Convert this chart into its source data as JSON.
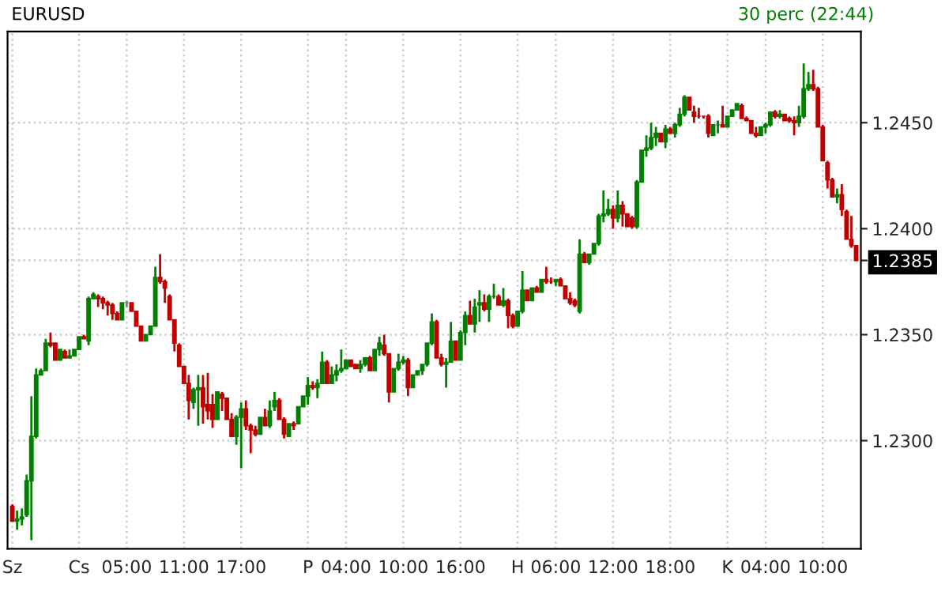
{
  "chart_data": {
    "type": "candlestick",
    "title": "EURUSD",
    "subtitle": "30 perc (22:44)",
    "categories": [
      "Sz",
      null,
      null,
      null,
      null,
      null,
      null,
      null,
      null,
      null,
      null,
      null,
      null,
      null,
      "Cs",
      null,
      null,
      null,
      null,
      null,
      null,
      null,
      null,
      null,
      "05:00",
      null,
      null,
      null,
      null,
      null,
      null,
      null,
      null,
      null,
      null,
      null,
      "11:00",
      null,
      null,
      null,
      null,
      null,
      null,
      null,
      null,
      null,
      null,
      null,
      "17:00",
      null,
      null,
      null,
      null,
      null,
      null,
      null,
      null,
      null,
      null,
      null,
      null,
      null,
      "P",
      null,
      null,
      null,
      null,
      null,
      null,
      null,
      "04:00",
      null,
      null,
      null,
      null,
      null,
      null,
      null,
      null,
      null,
      null,
      null,
      "10:00",
      null,
      null,
      null,
      null,
      null,
      null,
      null,
      null,
      null,
      null,
      null,
      "16:00",
      null,
      null,
      null,
      null,
      null,
      null,
      null,
      null,
      null,
      null,
      null,
      "H",
      null,
      null,
      null,
      null,
      null,
      null,
      null,
      "06:00",
      null,
      null,
      null,
      null,
      null,
      null,
      null,
      null,
      null,
      null,
      null,
      "12:00",
      null,
      null,
      null,
      null,
      null,
      null,
      null,
      null,
      null,
      null,
      null,
      "18:00",
      null,
      null,
      null,
      null,
      null,
      null,
      null,
      null,
      null,
      null,
      null,
      "K",
      null,
      null,
      null,
      null,
      null,
      null,
      null,
      "04:00",
      null,
      null,
      null,
      null,
      null,
      null,
      null,
      null,
      null,
      null,
      null,
      "10:00",
      null,
      null,
      null,
      null,
      null,
      null,
      null
    ],
    "ohlc": [
      [
        1.2269,
        1.227,
        1.2262,
        1.2262
      ],
      [
        1.2262,
        1.2267,
        1.2258,
        1.2263
      ],
      [
        1.2263,
        1.2268,
        1.226,
        1.2264
      ],
      [
        1.2265,
        1.2284,
        1.2264,
        1.2281
      ],
      [
        1.2281,
        1.2321,
        1.2253,
        1.2302
      ],
      [
        1.2302,
        1.2334,
        1.2301,
        1.2331
      ],
      [
        1.2331,
        1.2334,
        1.2331,
        1.2333
      ],
      [
        1.2333,
        1.2348,
        1.2333,
        1.2346
      ],
      [
        1.2346,
        1.2351,
        1.2344,
        1.2345
      ],
      [
        1.2346,
        1.2346,
        1.2338,
        1.2338
      ],
      [
        1.2338,
        1.2343,
        1.2338,
        1.2343
      ],
      [
        1.2342,
        1.2343,
        1.2339,
        1.2339
      ],
      [
        1.2339,
        1.2343,
        1.2339,
        1.234
      ],
      [
        1.234,
        1.2343,
        1.234,
        1.2343
      ],
      [
        1.2343,
        1.2349,
        1.2343,
        1.2349
      ],
      [
        1.2349,
        1.235,
        1.2348,
        1.2348
      ],
      [
        1.2347,
        1.2368,
        1.2345,
        1.2367
      ],
      [
        1.2367,
        1.237,
        1.2367,
        1.2369
      ],
      [
        1.2368,
        1.2369,
        1.2363,
        1.2367
      ],
      [
        1.2367,
        1.2368,
        1.2362,
        1.2365
      ],
      [
        1.2365,
        1.2366,
        1.2359,
        1.2364
      ],
      [
        1.2364,
        1.2365,
        1.2357,
        1.236
      ],
      [
        1.236,
        1.2361,
        1.2357,
        1.2357
      ],
      [
        1.2357,
        1.2365,
        1.2357,
        1.2365
      ],
      [
        1.2365,
        1.2366,
        1.2363,
        1.2365
      ],
      [
        1.2365,
        1.2365,
        1.2361,
        1.2361
      ],
      [
        1.2361,
        1.2361,
        1.2354,
        1.2354
      ],
      [
        1.2354,
        1.2354,
        1.2347,
        1.2347
      ],
      [
        1.2347,
        1.235,
        1.2347,
        1.235
      ],
      [
        1.235,
        1.2354,
        1.235,
        1.2354
      ],
      [
        1.2354,
        1.2382,
        1.2354,
        1.2377
      ],
      [
        1.2377,
        1.2388,
        1.2374,
        1.2375
      ],
      [
        1.2375,
        1.2376,
        1.2365,
        1.2372
      ],
      [
        1.2368,
        1.2369,
        1.2357,
        1.2357
      ],
      [
        1.2357,
        1.2357,
        1.2342,
        1.2346
      ],
      [
        1.2345,
        1.2346,
        1.2335,
        1.2335
      ],
      [
        1.2335,
        1.2335,
        1.2327,
        1.2327
      ],
      [
        1.2327,
        1.2331,
        1.231,
        1.2319
      ],
      [
        1.2318,
        1.2325,
        1.2315,
        1.2324
      ],
      [
        1.2324,
        1.2331,
        1.2307,
        1.2325
      ],
      [
        1.2325,
        1.2331,
        1.2308,
        1.2316
      ],
      [
        1.2317,
        1.2332,
        1.231,
        1.2314
      ],
      [
        1.2317,
        1.2322,
        1.2306,
        1.231
      ],
      [
        1.231,
        1.2323,
        1.231,
        1.2323
      ],
      [
        1.2322,
        1.2323,
        1.2314,
        1.232
      ],
      [
        1.232,
        1.232,
        1.231,
        1.231
      ],
      [
        1.231,
        1.2313,
        1.2302,
        1.2302
      ],
      [
        1.2302,
        1.2312,
        1.2298,
        1.2311
      ],
      [
        1.2311,
        1.2318,
        1.2287,
        1.2315
      ],
      [
        1.2315,
        1.2319,
        1.2305,
        1.2307
      ],
      [
        1.2307,
        1.2308,
        1.2294,
        1.2305
      ],
      [
        1.2305,
        1.2307,
        1.2302,
        1.2303
      ],
      [
        1.2303,
        1.2311,
        1.2303,
        1.2311
      ],
      [
        1.2311,
        1.2315,
        1.2307,
        1.2307
      ],
      [
        1.2307,
        1.2319,
        1.2306,
        1.2314
      ],
      [
        1.2316,
        1.2323,
        1.2314,
        1.2319
      ],
      [
        1.2319,
        1.232,
        1.231,
        1.231
      ],
      [
        1.231,
        1.2311,
        1.2301,
        1.2303
      ],
      [
        1.2302,
        1.2308,
        1.2302,
        1.2308
      ],
      [
        1.2308,
        1.2309,
        1.2305,
        1.2307
      ],
      [
        1.2308,
        1.2316,
        1.2308,
        1.2316
      ],
      [
        1.2316,
        1.2321,
        1.2316,
        1.2321
      ],
      [
        1.2321,
        1.233,
        1.2317,
        1.2326
      ],
      [
        1.2326,
        1.2328,
        1.2324,
        1.2325
      ],
      [
        1.2325,
        1.2329,
        1.232,
        1.2327
      ],
      [
        1.2327,
        1.2342,
        1.2327,
        1.2337
      ],
      [
        1.2337,
        1.2338,
        1.2327,
        1.2327
      ],
      [
        1.2327,
        1.2335,
        1.2327,
        1.2331
      ],
      [
        1.2331,
        1.2336,
        1.2328,
        1.2333
      ],
      [
        1.2333,
        1.2343,
        1.2332,
        1.2334
      ],
      [
        1.2334,
        1.2338,
        1.2334,
        1.2338
      ],
      [
        1.2338,
        1.2338,
        1.2335,
        1.2335
      ],
      [
        1.2336,
        1.2336,
        1.2334,
        1.2334
      ],
      [
        1.2334,
        1.2338,
        1.2332,
        1.2336
      ],
      [
        1.2336,
        1.2339,
        1.2335,
        1.2339
      ],
      [
        1.2339,
        1.234,
        1.2333,
        1.2333
      ],
      [
        1.2333,
        1.2343,
        1.2333,
        1.2343
      ],
      [
        1.2343,
        1.2349,
        1.234,
        1.2346
      ],
      [
        1.2345,
        1.235,
        1.234,
        1.2341
      ],
      [
        1.2341,
        1.2341,
        1.2318,
        1.2323
      ],
      [
        1.2323,
        1.2334,
        1.2323,
        1.2334
      ],
      [
        1.2334,
        1.2341,
        1.2333,
        1.2337
      ],
      [
        1.2337,
        1.234,
        1.2336,
        1.2338
      ],
      [
        1.2338,
        1.2339,
        1.2321,
        1.2325
      ],
      [
        1.2325,
        1.2331,
        1.2325,
        1.2331
      ],
      [
        1.2331,
        1.2333,
        1.2331,
        1.2333
      ],
      [
        1.2333,
        1.2336,
        1.2331,
        1.2336
      ],
      [
        1.2336,
        1.2346,
        1.2335,
        1.2346
      ],
      [
        1.2346,
        1.236,
        1.2345,
        1.2356
      ],
      [
        1.2356,
        1.2357,
        1.2339,
        1.2339
      ],
      [
        1.2339,
        1.2341,
        1.2335,
        1.2336
      ],
      [
        1.2336,
        1.2339,
        1.2325,
        1.2337
      ],
      [
        1.2337,
        1.2356,
        1.2337,
        1.2347
      ],
      [
        1.2347,
        1.2347,
        1.2338,
        1.2338
      ],
      [
        1.2338,
        1.2352,
        1.2338,
        1.2351
      ],
      [
        1.2351,
        1.2361,
        1.2345,
        1.2359
      ],
      [
        1.2359,
        1.2366,
        1.2355,
        1.2355
      ],
      [
        1.2355,
        1.2367,
        1.2351,
        1.2363
      ],
      [
        1.2364,
        1.2371,
        1.2356,
        1.2365
      ],
      [
        1.2365,
        1.2369,
        1.2361,
        1.2362
      ],
      [
        1.2362,
        1.2369,
        1.2356,
        1.2368
      ],
      [
        1.2368,
        1.2374,
        1.2367,
        1.2368
      ],
      [
        1.2368,
        1.2369,
        1.2364,
        1.2364
      ],
      [
        1.2364,
        1.2372,
        1.2363,
        1.2366
      ],
      [
        1.2366,
        1.2367,
        1.2353,
        1.2359
      ],
      [
        1.2359,
        1.236,
        1.2353,
        1.2354
      ],
      [
        1.2354,
        1.2361,
        1.2354,
        1.2361
      ],
      [
        1.2361,
        1.238,
        1.236,
        1.2371
      ],
      [
        1.2371,
        1.2371,
        1.2366,
        1.2366
      ],
      [
        1.2366,
        1.2372,
        1.2366,
        1.2372
      ],
      [
        1.2372,
        1.2373,
        1.237,
        1.237
      ],
      [
        1.237,
        1.2376,
        1.237,
        1.2376
      ],
      [
        1.2376,
        1.2382,
        1.2374,
        1.2375
      ],
      [
        1.2375,
        1.2377,
        1.2374,
        1.2375
      ],
      [
        1.2375,
        1.2376,
        1.2373,
        1.2376
      ],
      [
        1.2376,
        1.2377,
        1.2373,
        1.2373
      ],
      [
        1.2373,
        1.2373,
        1.2367,
        1.2367
      ],
      [
        1.2367,
        1.237,
        1.2364,
        1.2365
      ],
      [
        1.2366,
        1.2367,
        1.2363,
        1.2364
      ],
      [
        1.2361,
        1.2395,
        1.236,
        1.2388
      ],
      [
        1.2388,
        1.2389,
        1.2384,
        1.2384
      ],
      [
        1.2384,
        1.2388,
        1.2383,
        1.2388
      ],
      [
        1.2388,
        1.2393,
        1.2388,
        1.2393
      ],
      [
        1.2393,
        1.2407,
        1.2392,
        1.2406
      ],
      [
        1.2406,
        1.2418,
        1.2403,
        1.2407
      ],
      [
        1.2407,
        1.2414,
        1.2406,
        1.2409
      ],
      [
        1.2409,
        1.2411,
        1.24,
        1.2405
      ],
      [
        1.2405,
        1.2418,
        1.2403,
        1.2411
      ],
      [
        1.2411,
        1.2413,
        1.2401,
        1.2407
      ],
      [
        1.2407,
        1.2407,
        1.2401,
        1.2401
      ],
      [
        1.2405,
        1.2406,
        1.24,
        1.2401
      ],
      [
        1.2401,
        1.2423,
        1.24,
        1.2422
      ],
      [
        1.2422,
        1.2437,
        1.2422,
        1.2437
      ],
      [
        1.2437,
        1.2444,
        1.2434,
        1.2438
      ],
      [
        1.2438,
        1.245,
        1.2437,
        1.2443
      ],
      [
        1.2443,
        1.2448,
        1.2439,
        1.2445
      ],
      [
        1.2445,
        1.2445,
        1.2441,
        1.2441
      ],
      [
        1.2441,
        1.2449,
        1.2438,
        1.2447
      ],
      [
        1.2447,
        1.2448,
        1.2445,
        1.2445
      ],
      [
        1.2445,
        1.245,
        1.2443,
        1.2449
      ],
      [
        1.2449,
        1.2457,
        1.2448,
        1.2454
      ],
      [
        1.2454,
        1.2463,
        1.2453,
        1.2462
      ],
      [
        1.2462,
        1.2462,
        1.2456,
        1.2456
      ],
      [
        1.2455,
        1.2458,
        1.245,
        1.2453
      ],
      [
        1.2453,
        1.2457,
        1.2452,
        1.2453
      ],
      [
        1.2453,
        1.2453,
        1.2452,
        1.2453
      ],
      [
        1.2453,
        1.2454,
        1.2443,
        1.2445
      ],
      [
        1.2444,
        1.2449,
        1.2444,
        1.2449
      ],
      [
        1.2449,
        1.2451,
        1.2445,
        1.2449
      ],
      [
        1.2449,
        1.2458,
        1.2448,
        1.2448
      ],
      [
        1.2448,
        1.2453,
        1.2448,
        1.2453
      ],
      [
        1.2453,
        1.2456,
        1.2453,
        1.2456
      ],
      [
        1.2456,
        1.2459,
        1.2456,
        1.2459
      ],
      [
        1.2458,
        1.2459,
        1.2452,
        1.2452
      ],
      [
        1.2452,
        1.2453,
        1.2451,
        1.2451
      ],
      [
        1.2451,
        1.2451,
        1.2445,
        1.2445
      ],
      [
        1.2445,
        1.2448,
        1.2443,
        1.2444
      ],
      [
        1.2444,
        1.2448,
        1.2444,
        1.2448
      ],
      [
        1.2448,
        1.245,
        1.2445,
        1.2449
      ],
      [
        1.2449,
        1.2455,
        1.2448,
        1.2455
      ],
      [
        1.2455,
        1.2456,
        1.2452,
        1.2453
      ],
      [
        1.2453,
        1.2456,
        1.2452,
        1.2454
      ],
      [
        1.2454,
        1.2454,
        1.2451,
        1.2451
      ],
      [
        1.2452,
        1.2453,
        1.245,
        1.2451
      ],
      [
        1.2451,
        1.2453,
        1.2444,
        1.245
      ],
      [
        1.245,
        1.2458,
        1.2448,
        1.2453
      ],
      [
        1.2453,
        1.2478,
        1.2452,
        1.2466
      ],
      [
        1.2466,
        1.2474,
        1.2465,
        1.2468
      ],
      [
        1.2468,
        1.2475,
        1.2465,
        1.2466
      ],
      [
        1.2466,
        1.2467,
        1.2448,
        1.2448
      ],
      [
        1.2448,
        1.2449,
        1.2432,
        1.2432
      ],
      [
        1.2431,
        1.2432,
        1.2419,
        1.2423
      ],
      [
        1.2423,
        1.2424,
        1.2415,
        1.2415
      ],
      [
        1.2415,
        1.2419,
        1.2412,
        1.2416
      ],
      [
        1.2416,
        1.2421,
        1.2406,
        1.2409
      ],
      [
        1.2408,
        1.2409,
        1.2395,
        1.2395
      ],
      [
        1.2395,
        1.2406,
        1.2391,
        1.2392
      ],
      [
        1.2392,
        1.2392,
        1.2385,
        1.2385
      ]
    ],
    "colors": [
      "#c00000",
      "#008000",
      "#008000",
      "#008000",
      "#008000",
      "#008000",
      "#008000",
      "#008000",
      "#c00000",
      "#c00000",
      "#008000",
      "#c00000",
      "#008000",
      "#008000",
      "#008000",
      "#c00000",
      "#008000",
      "#008000",
      "#c00000",
      "#c00000",
      "#c00000",
      "#c00000",
      "#c00000",
      "#008000",
      "#808080",
      "#c00000",
      "#c00000",
      "#c00000",
      "#008000",
      "#008000",
      "#008000",
      "#c00000",
      "#c00000",
      "#c00000",
      "#c00000",
      "#c00000",
      "#c00000",
      "#c00000",
      "#008000",
      "#008000",
      "#c00000",
      "#c00000",
      "#c00000",
      "#008000",
      "#c00000",
      "#c00000",
      "#c00000",
      "#008000",
      "#008000",
      "#c00000",
      "#c00000",
      "#c00000",
      "#008000",
      "#c00000",
      "#008000",
      "#008000",
      "#c00000",
      "#c00000",
      "#008000",
      "#c00000",
      "#008000",
      "#008000",
      "#008000",
      "#c00000",
      "#008000",
      "#008000",
      "#c00000",
      "#008000",
      "#008000",
      "#008000",
      "#008000",
      "#c00000",
      "#c00000",
      "#008000",
      "#008000",
      "#c00000",
      "#008000",
      "#008000",
      "#c00000",
      "#c00000",
      "#008000",
      "#008000",
      "#008000",
      "#c00000",
      "#008000",
      "#008000",
      "#008000",
      "#008000",
      "#008000",
      "#c00000",
      "#c00000",
      "#008000",
      "#008000",
      "#c00000",
      "#008000",
      "#008000",
      "#c00000",
      "#008000",
      "#008000",
      "#c00000",
      "#008000",
      "#008000",
      "#c00000",
      "#008000",
      "#c00000",
      "#c00000",
      "#008000",
      "#008000",
      "#c00000",
      "#008000",
      "#c00000",
      "#008000",
      "#c00000",
      "#c00000",
      "#008000",
      "#c00000",
      "#c00000",
      "#c00000",
      "#c00000",
      "#008000",
      "#c00000",
      "#008000",
      "#008000",
      "#008000",
      "#008000",
      "#008000",
      "#c00000",
      "#008000",
      "#c00000",
      "#c00000",
      "#c00000",
      "#008000",
      "#008000",
      "#008000",
      "#008000",
      "#008000",
      "#c00000",
      "#008000",
      "#c00000",
      "#008000",
      "#008000",
      "#008000",
      "#c00000",
      "#c00000",
      "#c00000",
      "#c00000",
      "#c00000",
      "#008000",
      "#008000",
      "#c00000",
      "#008000",
      "#008000",
      "#008000",
      "#c00000",
      "#c00000",
      "#c00000",
      "#c00000",
      "#008000",
      "#008000",
      "#008000",
      "#c00000",
      "#008000",
      "#c00000",
      "#c00000",
      "#c00000",
      "#008000",
      "#008000",
      "#008000",
      "#c00000",
      "#c00000",
      "#c00000",
      "#c00000",
      "#c00000",
      "#008000",
      "#c00000",
      "#c00000",
      "#c00000",
      "#c00000"
    ],
    "ylim": [
      1.2249,
      1.2493
    ],
    "yticks": [
      {
        "value": 1.23,
        "label": "1.2300"
      },
      {
        "value": 1.235,
        "label": "1.2350"
      },
      {
        "value": 1.24,
        "label": "1.2400"
      },
      {
        "value": 1.245,
        "label": "1.2450"
      },
      {
        "value": 1.2385,
        "label": "1.2385"
      }
    ],
    "grid": true
  }
}
